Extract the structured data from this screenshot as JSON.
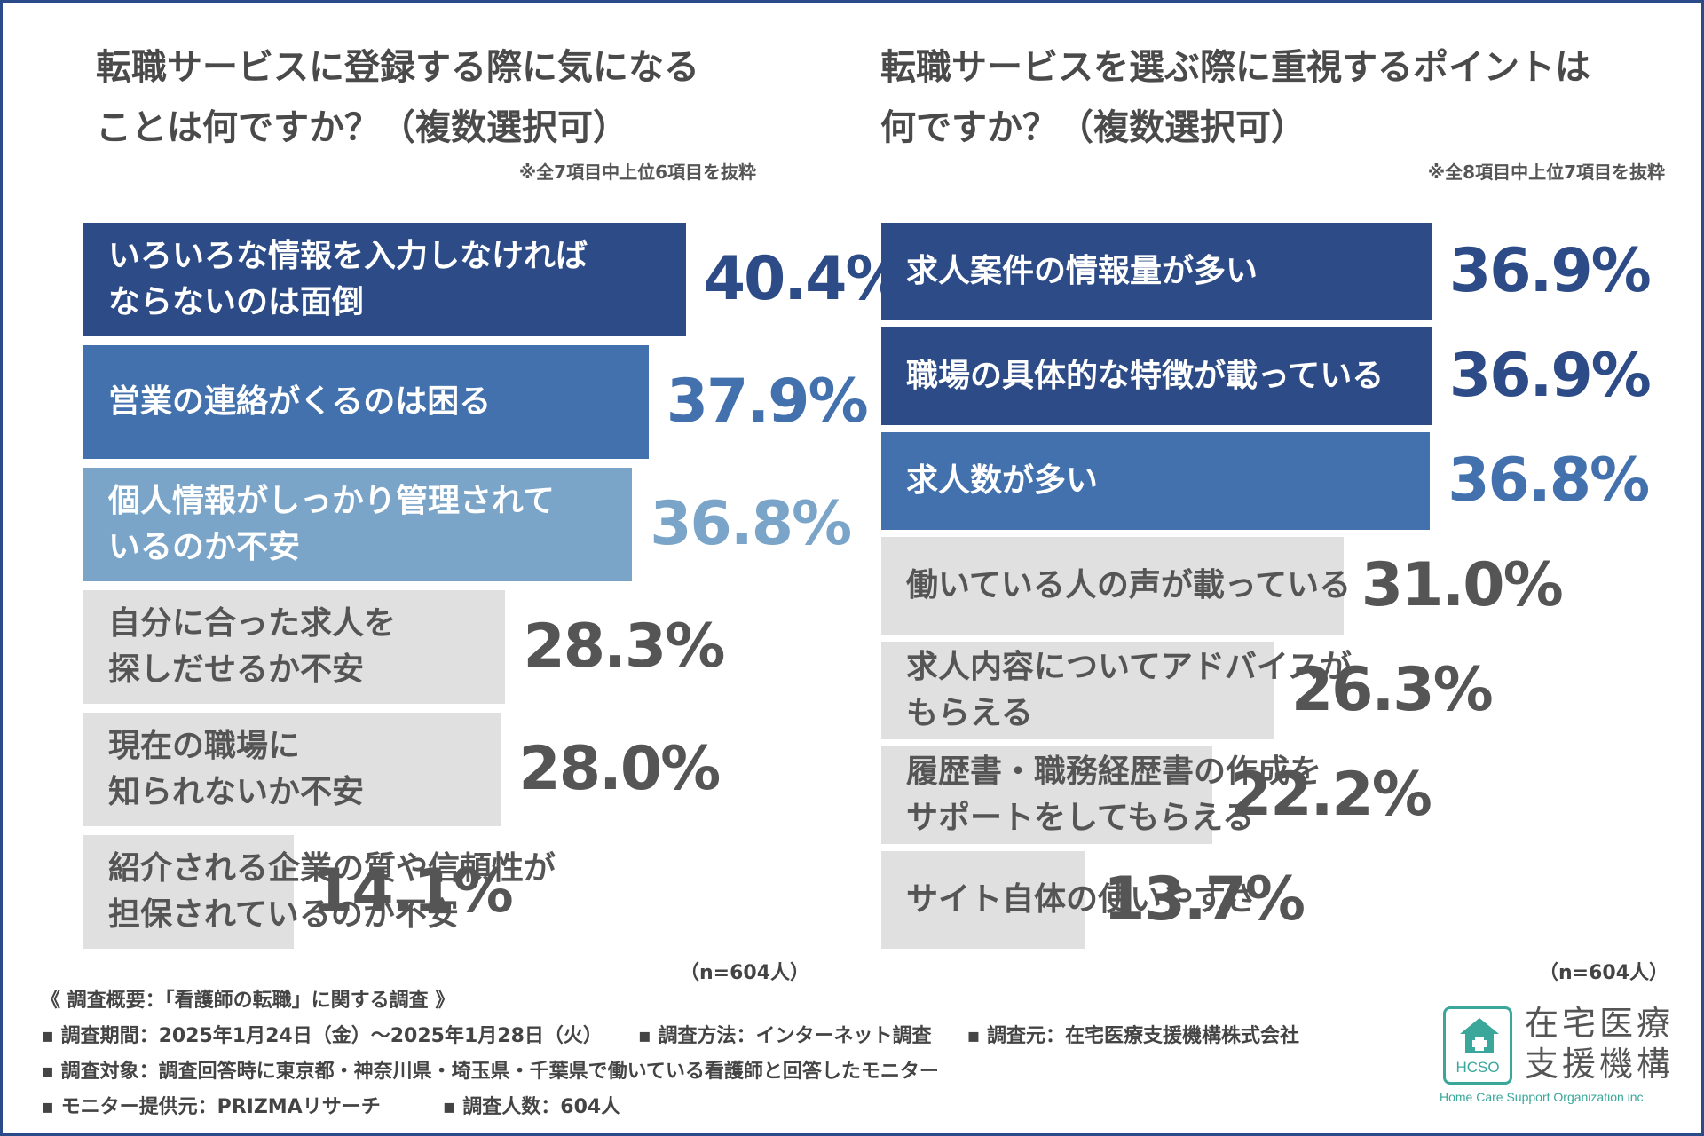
{
  "left": {
    "title": "転職サービスに登録する際に気になる\nことは何ですか？（複数選択可）",
    "note": "※全7項目中上位6項目を抜粋",
    "n_label": "（n=604人）"
  },
  "right": {
    "title": "転職サービスを選ぶ際に重視するポイントは\n何ですか？（複数選択可）",
    "note": "※全8項目中上位7項目を抜粋",
    "n_label": "（n=604人）"
  },
  "chart_data": [
    {
      "type": "bar",
      "orientation": "horizontal",
      "title": "転職サービスに登録する際に気になることは何ですか？（複数選択可）",
      "categories": [
        "いろいろな情報を入力しなければ\nならないのは面倒",
        "営業の連絡がくるのは困る",
        "個人情報がしっかり管理されて\nいるのか不安",
        "自分に合った求人を\n探しだせるか不安",
        "現在の職場に\n知られないか不安",
        "紹介される企業の質や信頼性が\n担保されているのか不安"
      ],
      "values": [
        40.4,
        37.9,
        36.8,
        28.3,
        28.0,
        14.1
      ],
      "value_labels": [
        "40.4%",
        "37.9%",
        "36.8%",
        "28.3%",
        "28.0%",
        "14.1%"
      ],
      "bar_colors": [
        "#2d4b86",
        "#4371ad",
        "#7aa4c8",
        "#e0e0e0",
        "#e0e0e0",
        "#e0e0e0"
      ],
      "label_colors": [
        "#ffffff",
        "#ffffff",
        "#ffffff",
        "#555555",
        "#555555",
        "#555555"
      ],
      "value_colors": [
        "#2d4b86",
        "#4371ad",
        "#7aa4c8",
        "#555555",
        "#555555",
        "#555555"
      ]
    },
    {
      "type": "bar",
      "orientation": "horizontal",
      "title": "転職サービスを選ぶ際に重視するポイントは何ですか？（複数選択可）",
      "categories": [
        "求人案件の情報量が多い",
        "職場の具体的な特徴が載っている",
        "求人数が多い",
        "働いている人の声が載っている",
        "求人内容についてアドバイスが\nもらえる",
        "履歴書・職務経歴書の作成を\nサポートをしてもらえる",
        "サイト自体の使いやすさ"
      ],
      "values": [
        36.9,
        36.9,
        36.8,
        31.0,
        26.3,
        22.2,
        13.7
      ],
      "value_labels": [
        "36.9%",
        "36.9%",
        "36.8%",
        "31.0%",
        "26.3%",
        "22.2%",
        "13.7%"
      ],
      "bar_colors": [
        "#2d4b86",
        "#2d4b86",
        "#4371ad",
        "#e0e0e0",
        "#e0e0e0",
        "#e0e0e0",
        "#e0e0e0"
      ],
      "label_colors": [
        "#ffffff",
        "#ffffff",
        "#ffffff",
        "#555555",
        "#555555",
        "#555555",
        "#555555"
      ],
      "value_colors": [
        "#2d4b86",
        "#2d4b86",
        "#4371ad",
        "#555555",
        "#555555",
        "#555555",
        "#555555"
      ]
    }
  ],
  "footer": {
    "heading": "《 調査概要：「看護師の転職」に関する調査 》",
    "period": "▪ 調査期間：2025年1月24日（金）〜2025年1月28日（火）",
    "method": "▪ 調査方法：インターネット調査",
    "source": "▪ 調査元：在宅医療支援機構株式会社",
    "target": "▪ 調査対象：調査回答時に東京都・神奈川県・埼玉県・千葉県で働いている看護師と回答したモニター",
    "provider": "▪ モニター提供元：PRIZMAリサーチ",
    "count": "▪ 調査人数：604人"
  },
  "logo": {
    "mark_text": "HCSO",
    "name": "在宅医療\n支援機構",
    "english": "Home Care Support Organization inc"
  }
}
